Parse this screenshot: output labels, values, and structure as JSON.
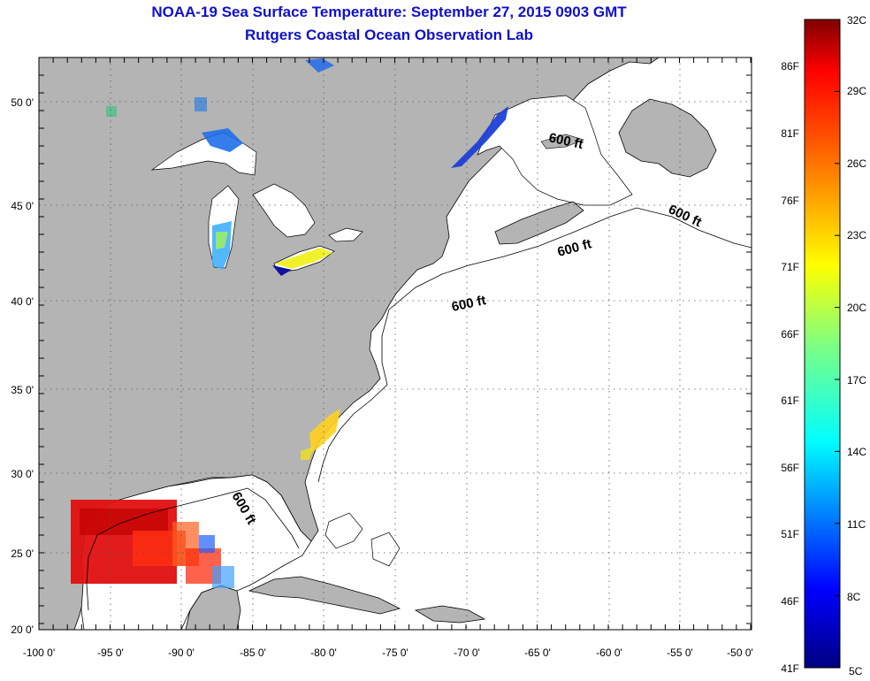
{
  "header": {
    "title": "NOAA-19 Sea Surface Temperature:  September 27, 2015 0903 GMT",
    "subtitle": "Rutgers Coastal Ocean Observation Lab"
  },
  "axes": {
    "x_ticks": [
      "-100 0'",
      "-95 0'",
      "-90 0'",
      "-85 0'",
      "-80 0'",
      "-75 0'",
      "-70 0'",
      "-65 0'",
      "-60 0'",
      "-55 0'",
      "-50 0'"
    ],
    "y_ticks": [
      "50 0'",
      "45 0'",
      "40 0'",
      "35 0'",
      "30 0'",
      "25 0'",
      "20 0'"
    ]
  },
  "contour_labels": [
    "600 ft",
    "600 ft",
    "600 ft",
    "600 ft",
    "600 ft"
  ],
  "colorbar": {
    "celsius": [
      "32C",
      "29C",
      "26C",
      "23C",
      "20C",
      "17C",
      "14C",
      "11C",
      "8C",
      "5C"
    ],
    "fahrenheit": [
      "86F",
      "81F",
      "76F",
      "71F",
      "66F",
      "61F",
      "56F",
      "51F",
      "46F",
      "41F"
    ]
  },
  "colors": {
    "land": "#b4b4b4",
    "ocean": "#ffffff",
    "title": "#1010c8",
    "colormap": [
      "#800000",
      "#ff0000",
      "#ff8000",
      "#ffff00",
      "#80ff80",
      "#00ffff",
      "#0080ff",
      "#0000ff",
      "#000080"
    ]
  }
}
